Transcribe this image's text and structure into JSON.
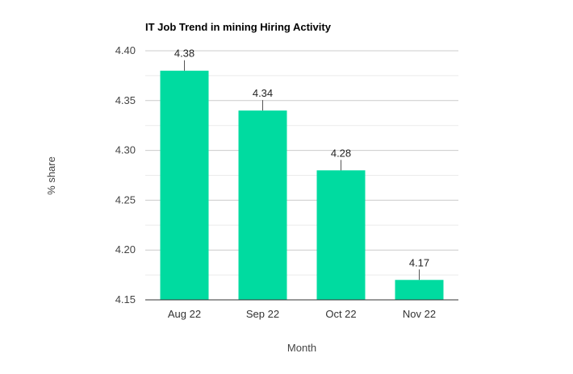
{
  "chart_data": {
    "type": "bar",
    "title": "IT Job Trend in mining Hiring Activity",
    "xlabel": "Month",
    "ylabel": "% share",
    "categories": [
      "Aug 22",
      "Sep 22",
      "Oct 22",
      "Nov 22"
    ],
    "values": [
      4.38,
      4.34,
      4.28,
      4.17
    ],
    "data_labels": [
      "4.38",
      "4.34",
      "4.28",
      "4.17"
    ],
    "ylim": [
      4.15,
      4.4
    ],
    "yticks": [
      "4.15",
      "4.20",
      "4.25",
      "4.30",
      "4.35",
      "4.40"
    ],
    "grid": true,
    "bar_color": "#00dba0"
  }
}
